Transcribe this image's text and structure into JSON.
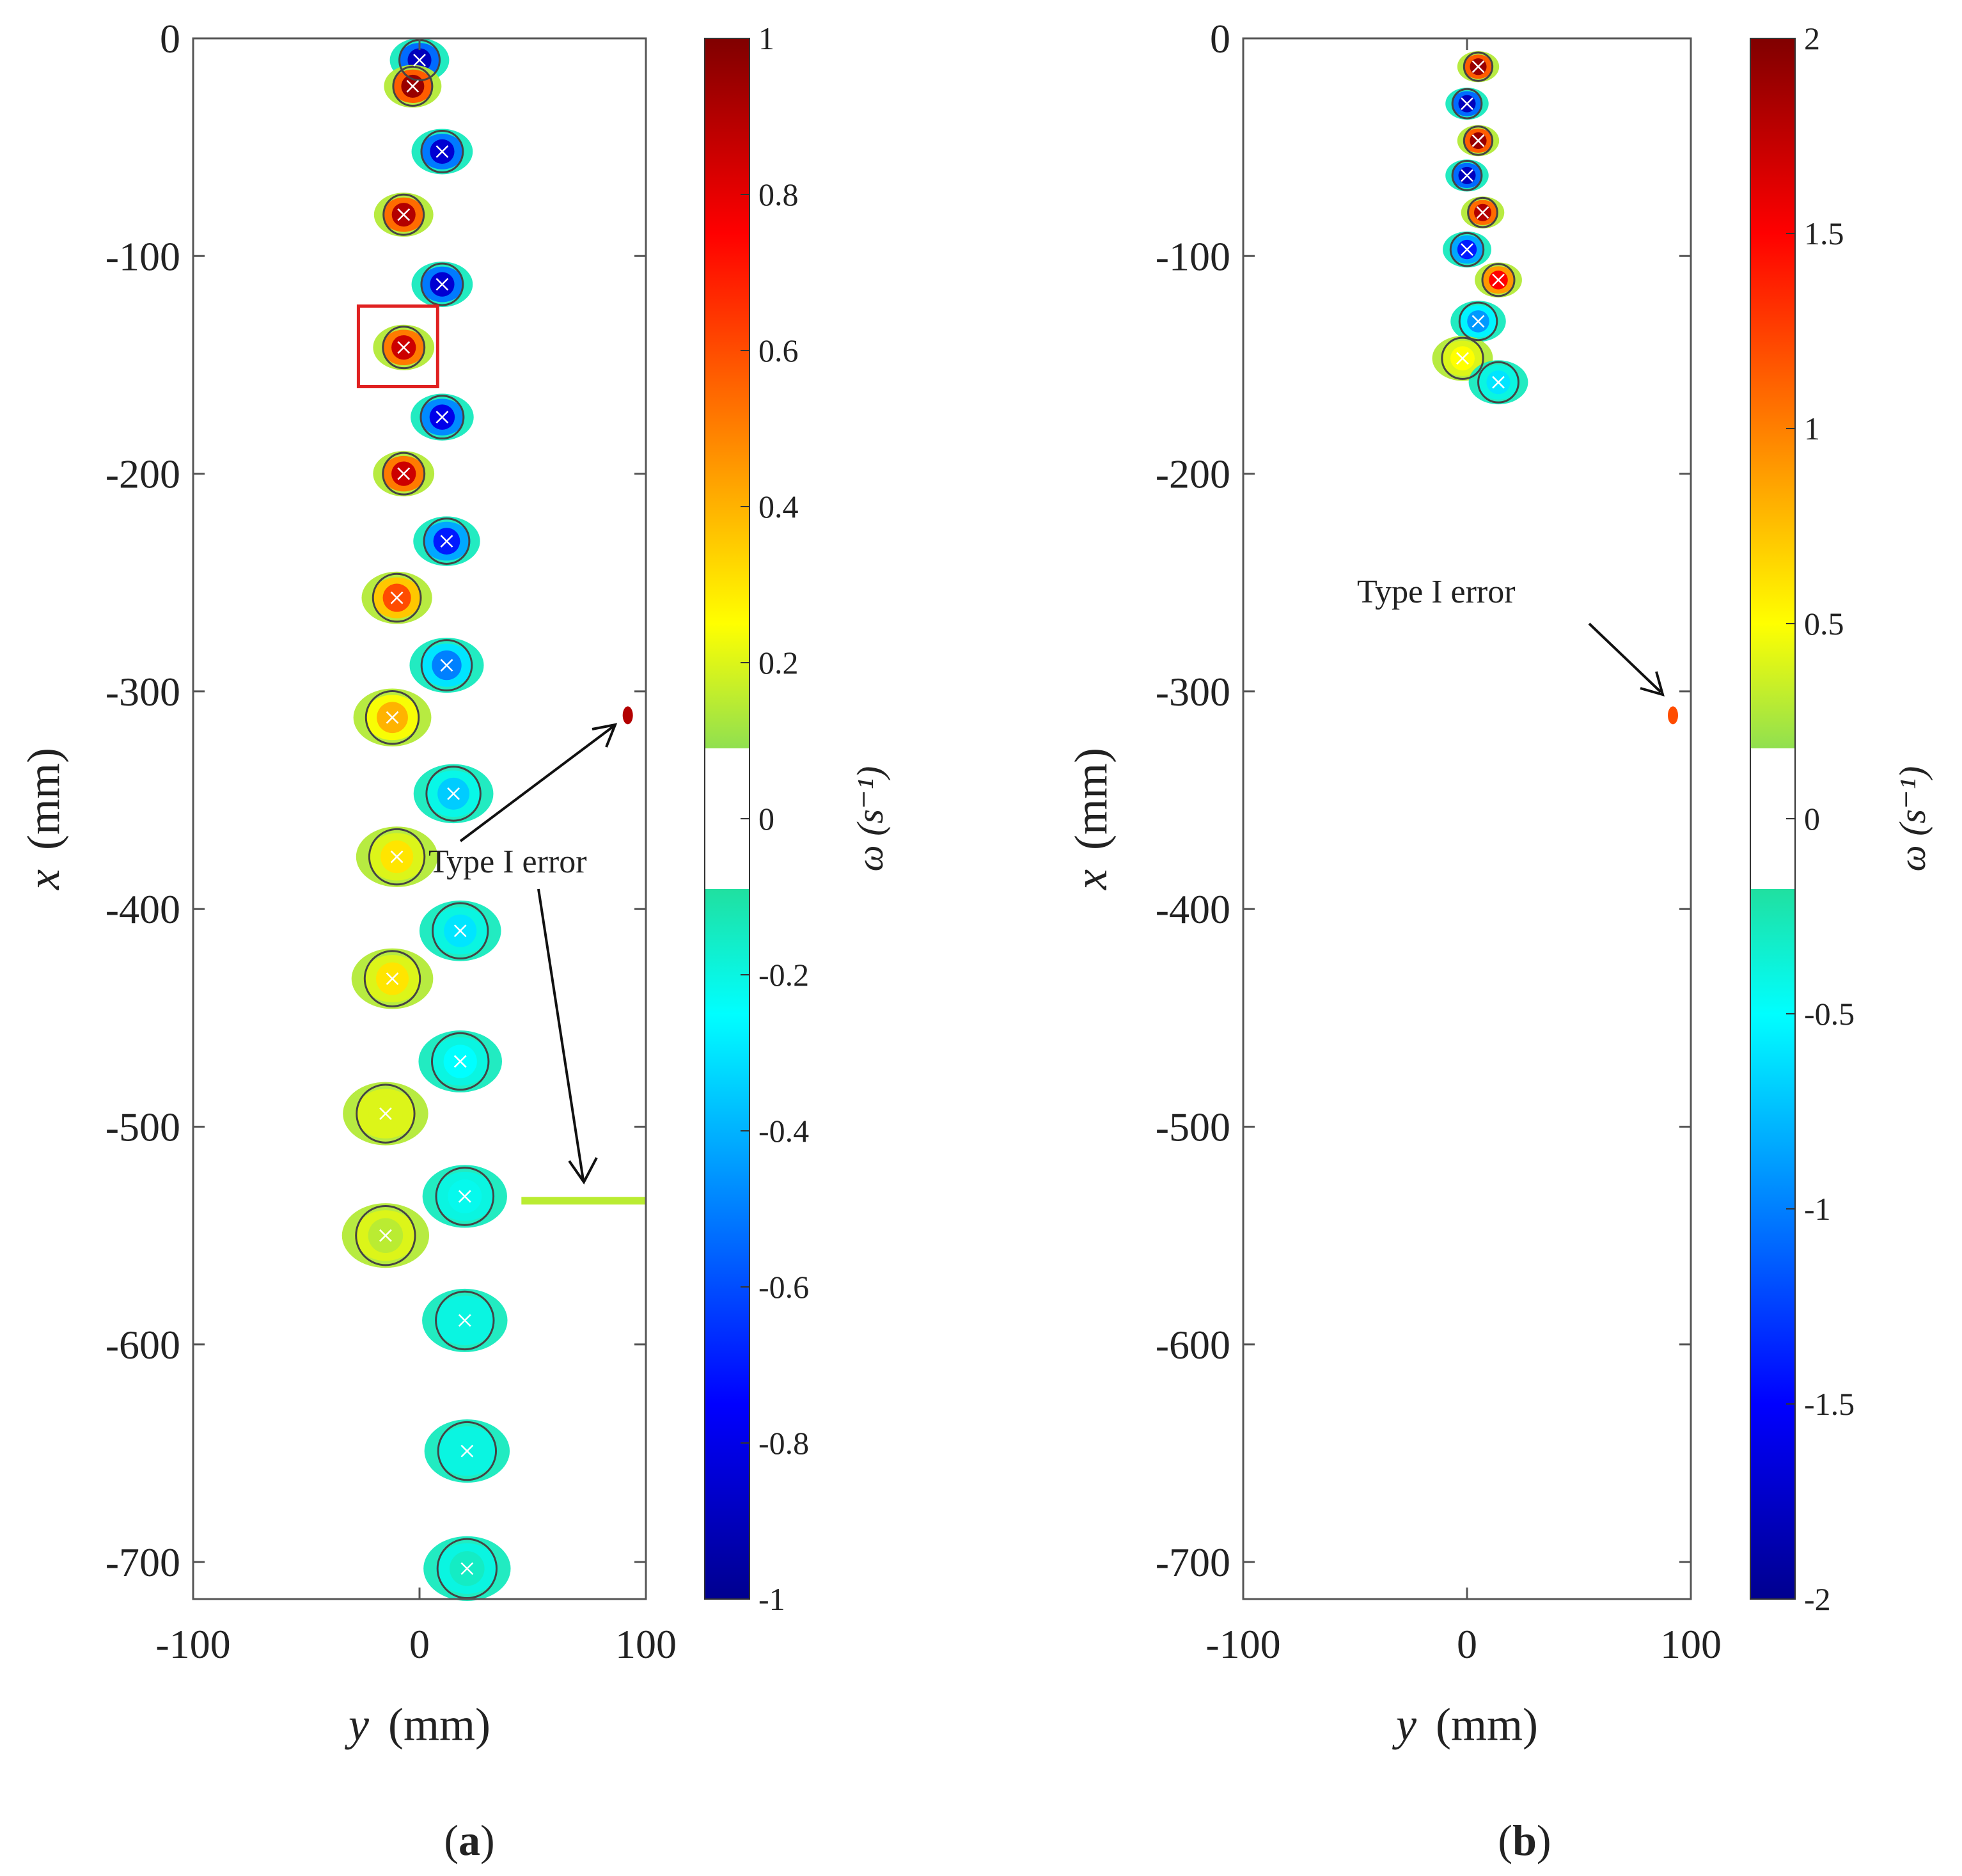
{
  "figure": {
    "panels": [
      {
        "id": "a",
        "panel_label": {
          "open": "(",
          "letter": "a",
          "close": ")"
        },
        "xlabel_var": "y",
        "xlabel_unit": "(mm)",
        "ylabel_var": "x",
        "ylabel_unit": "(mm)",
        "x_ticks": [
          "-100",
          "0",
          "100"
        ],
        "y_ticks": [
          "0",
          "-100",
          "-200",
          "-300",
          "-400",
          "-500",
          "-600",
          "-700"
        ],
        "annotation": "Type I error",
        "colorbar": {
          "label": "ω (s⁻¹)",
          "ticks": [
            "1",
            "0.8",
            "0.6",
            "0.4",
            "0.2",
            "0",
            "-0.2",
            "-0.4",
            "-0.6",
            "-0.8",
            "-1"
          ]
        }
      },
      {
        "id": "b",
        "panel_label": {
          "open": "(",
          "letter": "b",
          "close": ")"
        },
        "xlabel_var": "y",
        "xlabel_unit": "(mm)",
        "ylabel_var": "x",
        "ylabel_unit": "(mm)",
        "x_ticks": [
          "-100",
          "0",
          "100"
        ],
        "y_ticks": [
          "0",
          "-100",
          "-200",
          "-300",
          "-400",
          "-500",
          "-600",
          "-700"
        ],
        "annotation": "Type I error",
        "colorbar": {
          "label": "ω (s⁻¹)",
          "ticks": [
            "2",
            "1.5",
            "1",
            "0.5",
            "0",
            "-0.5",
            "-1",
            "-1.5",
            "-2"
          ]
        }
      }
    ]
  },
  "chart_data": [
    {
      "type": "heatmap",
      "title": "(a)",
      "xlabel": "y (mm)",
      "ylabel": "x (mm)",
      "xlim": [
        -100,
        100
      ],
      "ylim": [
        -717,
        0
      ],
      "colorbar": {
        "label": "ω (s⁻¹)",
        "range": [
          -1,
          1
        ],
        "blank_band": [
          -0.06,
          0.06
        ]
      },
      "vortices": [
        {
          "y": 0,
          "x": -10,
          "w": -0.9
        },
        {
          "y": -3,
          "x": -22,
          "w": 0.95
        },
        {
          "y": 10,
          "x": -52,
          "w": -0.85
        },
        {
          "y": -7,
          "x": -81,
          "w": 0.9
        },
        {
          "y": 10,
          "x": -113,
          "w": -0.85
        },
        {
          "y": -7,
          "x": -142,
          "w": 0.85
        },
        {
          "y": 10,
          "x": -174,
          "w": -0.8
        },
        {
          "y": -7,
          "x": -200,
          "w": 0.85
        },
        {
          "y": 12,
          "x": -231,
          "w": -0.7
        },
        {
          "y": -10,
          "x": -257,
          "w": 0.6
        },
        {
          "y": 12,
          "x": -288,
          "w": -0.5
        },
        {
          "y": -12,
          "x": -312,
          "w": 0.4
        },
        {
          "y": 15,
          "x": -347,
          "w": -0.35
        },
        {
          "y": -10,
          "x": -376,
          "w": 0.3
        },
        {
          "y": 18,
          "x": -410,
          "w": -0.3
        },
        {
          "y": -12,
          "x": -432,
          "w": 0.3
        },
        {
          "y": 18,
          "x": -470,
          "w": -0.25
        },
        {
          "y": -15,
          "x": -494,
          "w": 0.2
        },
        {
          "y": 20,
          "x": -532,
          "w": -0.22
        },
        {
          "y": -15,
          "x": -550,
          "w": 0.15
        },
        {
          "y": 20,
          "x": -589,
          "w": -0.2
        },
        {
          "y": 21,
          "x": -649,
          "w": -0.2
        },
        {
          "y": 21,
          "x": -703,
          "w": -0.15
        }
      ],
      "false_detections": [
        {
          "y": 92,
          "x": -311,
          "w": 0.9
        },
        {
          "y_from": 45,
          "y_to": 100,
          "x": -534,
          "w": 0.15
        }
      ],
      "highlight_box": {
        "y_from": -27,
        "y_to": 8,
        "x_from": -123,
        "x_to": -160
      }
    },
    {
      "type": "heatmap",
      "title": "(b)",
      "xlabel": "y (mm)",
      "ylabel": "x (mm)",
      "xlim": [
        -100,
        100
      ],
      "ylim": [
        -717,
        0
      ],
      "colorbar": {
        "label": "ω (s⁻¹)",
        "range": [
          -2,
          2
        ],
        "blank_band": [
          -0.12,
          0.12
        ]
      },
      "vortices": [
        {
          "y": 5,
          "x": -13,
          "w": 1.9
        },
        {
          "y": 0,
          "x": -30,
          "w": -1.8
        },
        {
          "y": 5,
          "x": -47,
          "w": 1.9
        },
        {
          "y": 0,
          "x": -63,
          "w": -1.8
        },
        {
          "y": 7,
          "x": -80,
          "w": 1.8
        },
        {
          "y": 0,
          "x": -97,
          "w": -1.4
        },
        {
          "y": 14,
          "x": -111,
          "w": 1.5
        },
        {
          "y": 5,
          "x": -130,
          "w": -0.9
        },
        {
          "y": -2,
          "x": -147,
          "w": 0.5
        },
        {
          "y": 14,
          "x": -158,
          "w": -0.6
        }
      ],
      "false_detections": [
        {
          "y": 92,
          "x": -311,
          "w": 1.2
        }
      ]
    }
  ]
}
